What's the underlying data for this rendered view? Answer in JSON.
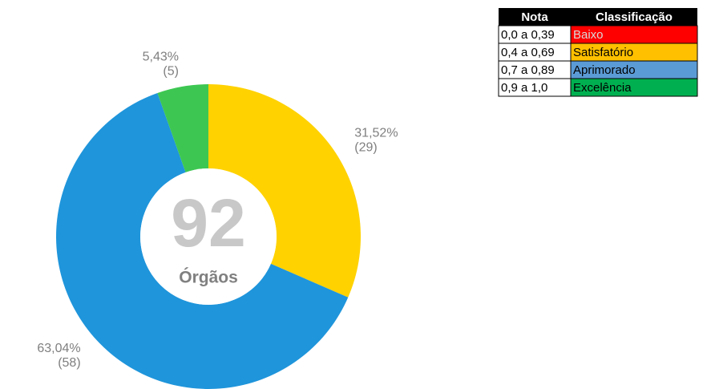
{
  "chart_data": {
    "type": "donut",
    "categories": [
      "Satisfatório",
      "Aprimorado",
      "Excelência"
    ],
    "values": [
      31.52,
      63.04,
      5.43
    ],
    "value_labels": [
      "31,52%",
      "63,04%",
      "5,43%"
    ],
    "counts": [
      29,
      58,
      5
    ],
    "count_labels": [
      "(29)",
      "(58)",
      "(5)"
    ],
    "colors": [
      "#ffd200",
      "#1f95db",
      "#3dc752"
    ],
    "center_value": 92,
    "center_label": "Órgãos"
  },
  "table": {
    "header": [
      "Nota",
      "Classificação"
    ],
    "rows": [
      [
        "0,0 a 0,39",
        "Baixo"
      ],
      [
        "0,4 a 0,69",
        "Satisfatório"
      ],
      [
        "0,7 a 0,89",
        "Aprimorado"
      ],
      [
        "0,9 a 1,0",
        "Excelência"
      ]
    ],
    "colors": [
      "#ff0000",
      "#ffc000",
      "#5b9bd5",
      "#00b050"
    ]
  }
}
